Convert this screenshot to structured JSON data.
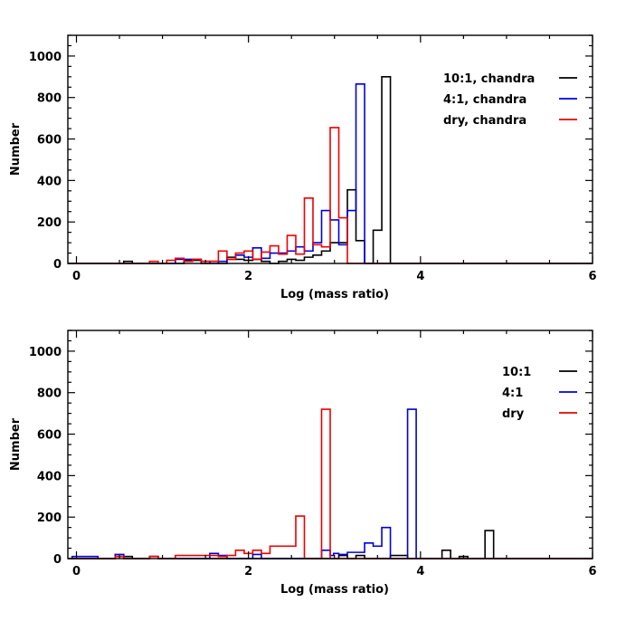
{
  "chart_data": [
    {
      "type": "histogram",
      "xlabel": "Log (mass ratio)",
      "ylabel": "Number",
      "xlim": [
        -0.1,
        6.0
      ],
      "ylim": [
        0,
        1100
      ],
      "xticks": [
        0,
        2,
        4,
        6
      ],
      "yticks": [
        0,
        200,
        400,
        600,
        800,
        1000
      ],
      "legend_position": "top-right",
      "series": [
        {
          "name": "10:1, chandra",
          "color": "#000000",
          "points": [
            [
              -0.1,
              0
            ],
            [
              0.55,
              0
            ],
            [
              0.55,
              10
            ],
            [
              0.65,
              10
            ],
            [
              0.65,
              0
            ],
            [
              1.25,
              0
            ],
            [
              1.25,
              15
            ],
            [
              1.45,
              15
            ],
            [
              1.45,
              0
            ],
            [
              1.55,
              0
            ],
            [
              1.55,
              10
            ],
            [
              1.65,
              10
            ],
            [
              1.65,
              0
            ],
            [
              1.75,
              0
            ],
            [
              1.75,
              30
            ],
            [
              1.85,
              30
            ],
            [
              1.85,
              20
            ],
            [
              1.95,
              20
            ],
            [
              1.95,
              15
            ],
            [
              2.05,
              15
            ],
            [
              2.05,
              20
            ],
            [
              2.15,
              20
            ],
            [
              2.15,
              10
            ],
            [
              2.25,
              10
            ],
            [
              2.25,
              0
            ],
            [
              2.35,
              0
            ],
            [
              2.35,
              10
            ],
            [
              2.45,
              10
            ],
            [
              2.45,
              20
            ],
            [
              2.55,
              20
            ],
            [
              2.55,
              15
            ],
            [
              2.65,
              15
            ],
            [
              2.65,
              30
            ],
            [
              2.75,
              30
            ],
            [
              2.75,
              40
            ],
            [
              2.85,
              40
            ],
            [
              2.85,
              60
            ],
            [
              2.95,
              60
            ],
            [
              2.95,
              100
            ],
            [
              3.05,
              100
            ],
            [
              3.05,
              100
            ],
            [
              3.15,
              100
            ],
            [
              3.15,
              355
            ],
            [
              3.25,
              355
            ],
            [
              3.25,
              110
            ],
            [
              3.35,
              110
            ],
            [
              3.35,
              0
            ],
            [
              3.45,
              0
            ],
            [
              3.45,
              160
            ],
            [
              3.55,
              160
            ],
            [
              3.55,
              900
            ],
            [
              3.65,
              900
            ],
            [
              3.65,
              0
            ],
            [
              6.0,
              0
            ]
          ]
        },
        {
          "name": "4:1, chandra",
          "color": "#0000dd",
          "points": [
            [
              -0.1,
              0
            ],
            [
              1.15,
              0
            ],
            [
              1.15,
              20
            ],
            [
              1.45,
              20
            ],
            [
              1.45,
              10
            ],
            [
              1.55,
              10
            ],
            [
              1.55,
              0
            ],
            [
              1.65,
              0
            ],
            [
              1.65,
              10
            ],
            [
              1.75,
              10
            ],
            [
              1.75,
              20
            ],
            [
              1.85,
              20
            ],
            [
              1.85,
              40
            ],
            [
              1.95,
              40
            ],
            [
              1.95,
              30
            ],
            [
              2.05,
              30
            ],
            [
              2.05,
              75
            ],
            [
              2.15,
              75
            ],
            [
              2.15,
              25
            ],
            [
              2.25,
              25
            ],
            [
              2.25,
              50
            ],
            [
              2.45,
              50
            ],
            [
              2.45,
              60
            ],
            [
              2.55,
              60
            ],
            [
              2.55,
              80
            ],
            [
              2.65,
              80
            ],
            [
              2.65,
              60
            ],
            [
              2.75,
              60
            ],
            [
              2.75,
              100
            ],
            [
              2.85,
              100
            ],
            [
              2.85,
              255
            ],
            [
              2.95,
              255
            ],
            [
              2.95,
              210
            ],
            [
              3.05,
              210
            ],
            [
              3.05,
              90
            ],
            [
              3.15,
              90
            ],
            [
              3.15,
              255
            ],
            [
              3.25,
              255
            ],
            [
              3.25,
              865
            ],
            [
              3.35,
              865
            ],
            [
              3.35,
              0
            ],
            [
              6.0,
              0
            ]
          ]
        },
        {
          "name": "dry, chandra",
          "color": "#ee0000",
          "points": [
            [
              -0.1,
              0
            ],
            [
              0.85,
              0
            ],
            [
              0.85,
              10
            ],
            [
              0.95,
              10
            ],
            [
              0.95,
              0
            ],
            [
              1.05,
              0
            ],
            [
              1.05,
              15
            ],
            [
              1.15,
              15
            ],
            [
              1.15,
              25
            ],
            [
              1.25,
              25
            ],
            [
              1.25,
              10
            ],
            [
              1.35,
              10
            ],
            [
              1.35,
              20
            ],
            [
              1.45,
              20
            ],
            [
              1.45,
              10
            ],
            [
              1.65,
              10
            ],
            [
              1.65,
              60
            ],
            [
              1.75,
              60
            ],
            [
              1.75,
              20
            ],
            [
              1.85,
              20
            ],
            [
              1.85,
              50
            ],
            [
              1.95,
              50
            ],
            [
              1.95,
              60
            ],
            [
              2.05,
              60
            ],
            [
              2.05,
              20
            ],
            [
              2.15,
              20
            ],
            [
              2.15,
              55
            ],
            [
              2.25,
              55
            ],
            [
              2.25,
              85
            ],
            [
              2.35,
              85
            ],
            [
              2.35,
              45
            ],
            [
              2.45,
              45
            ],
            [
              2.45,
              135
            ],
            [
              2.55,
              135
            ],
            [
              2.55,
              45
            ],
            [
              2.65,
              45
            ],
            [
              2.65,
              315
            ],
            [
              2.75,
              315
            ],
            [
              2.75,
              90
            ],
            [
              2.85,
              90
            ],
            [
              2.85,
              80
            ],
            [
              2.95,
              80
            ],
            [
              2.95,
              655
            ],
            [
              3.05,
              655
            ],
            [
              3.05,
              220
            ],
            [
              3.15,
              220
            ],
            [
              3.15,
              0
            ],
            [
              6.0,
              0
            ]
          ]
        }
      ]
    },
    {
      "type": "histogram",
      "xlabel": "Log (mass ratio)",
      "ylabel": "Number",
      "xlim": [
        -0.1,
        6.0
      ],
      "ylim": [
        0,
        1100
      ],
      "xticks": [
        0,
        2,
        4,
        6
      ],
      "yticks": [
        0,
        200,
        400,
        600,
        800,
        1000
      ],
      "legend_position": "top-right",
      "series": [
        {
          "name": "10:1",
          "color": "#000000",
          "points": [
            [
              -0.1,
              0
            ],
            [
              0.45,
              0
            ],
            [
              0.45,
              10
            ],
            [
              0.65,
              10
            ],
            [
              0.65,
              0
            ],
            [
              0.85,
              0
            ],
            [
              0.85,
              10
            ],
            [
              0.95,
              10
            ],
            [
              0.95,
              0
            ],
            [
              3.05,
              0
            ],
            [
              3.05,
              15
            ],
            [
              3.15,
              15
            ],
            [
              3.15,
              0
            ],
            [
              3.25,
              0
            ],
            [
              3.25,
              15
            ],
            [
              3.35,
              15
            ],
            [
              3.35,
              0
            ],
            [
              3.65,
              0
            ],
            [
              3.65,
              15
            ],
            [
              3.85,
              15
            ],
            [
              3.85,
              0
            ],
            [
              4.25,
              0
            ],
            [
              4.25,
              40
            ],
            [
              4.35,
              40
            ],
            [
              4.35,
              0
            ],
            [
              4.45,
              0
            ],
            [
              4.45,
              10
            ],
            [
              4.55,
              10
            ],
            [
              4.55,
              0
            ],
            [
              4.75,
              0
            ],
            [
              4.75,
              135
            ],
            [
              4.85,
              135
            ],
            [
              4.85,
              0
            ],
            [
              6.0,
              0
            ]
          ]
        },
        {
          "name": "4:1",
          "color": "#0000dd",
          "points": [
            [
              -0.1,
              0
            ],
            [
              -0.05,
              0
            ],
            [
              -0.05,
              10
            ],
            [
              0.25,
              10
            ],
            [
              0.25,
              0
            ],
            [
              0.45,
              0
            ],
            [
              0.45,
              20
            ],
            [
              0.55,
              20
            ],
            [
              0.55,
              0
            ],
            [
              0.85,
              0
            ],
            [
              0.85,
              10
            ],
            [
              0.95,
              10
            ],
            [
              0.95,
              0
            ],
            [
              1.55,
              0
            ],
            [
              1.55,
              25
            ],
            [
              1.65,
              25
            ],
            [
              1.65,
              15
            ],
            [
              1.75,
              15
            ],
            [
              1.75,
              0
            ],
            [
              2.05,
              0
            ],
            [
              2.05,
              20
            ],
            [
              2.15,
              20
            ],
            [
              2.15,
              0
            ],
            [
              2.85,
              0
            ],
            [
              2.85,
              40
            ],
            [
              2.95,
              40
            ],
            [
              2.95,
              15
            ],
            [
              2.99,
              15
            ],
            [
              2.99,
              25
            ],
            [
              3.05,
              25
            ],
            [
              3.05,
              20
            ],
            [
              3.15,
              20
            ],
            [
              3.15,
              30
            ],
            [
              3.35,
              30
            ],
            [
              3.35,
              75
            ],
            [
              3.45,
              75
            ],
            [
              3.45,
              60
            ],
            [
              3.55,
              60
            ],
            [
              3.55,
              150
            ],
            [
              3.65,
              150
            ],
            [
              3.65,
              0
            ],
            [
              3.85,
              0
            ],
            [
              3.85,
              720
            ],
            [
              3.95,
              720
            ],
            [
              3.95,
              0
            ],
            [
              6.0,
              0
            ]
          ]
        },
        {
          "name": "dry",
          "color": "#ee0000",
          "points": [
            [
              -0.1,
              0
            ],
            [
              0.45,
              0
            ],
            [
              0.45,
              10
            ],
            [
              0.55,
              10
            ],
            [
              0.55,
              0
            ],
            [
              0.85,
              0
            ],
            [
              0.85,
              10
            ],
            [
              0.95,
              10
            ],
            [
              0.95,
              0
            ],
            [
              1.15,
              0
            ],
            [
              1.15,
              15
            ],
            [
              1.65,
              15
            ],
            [
              1.65,
              10
            ],
            [
              1.75,
              10
            ],
            [
              1.75,
              15
            ],
            [
              1.85,
              15
            ],
            [
              1.85,
              40
            ],
            [
              1.95,
              40
            ],
            [
              1.95,
              25
            ],
            [
              2.05,
              25
            ],
            [
              2.05,
              40
            ],
            [
              2.15,
              40
            ],
            [
              2.15,
              25
            ],
            [
              2.25,
              25
            ],
            [
              2.25,
              60
            ],
            [
              2.55,
              60
            ],
            [
              2.55,
              205
            ],
            [
              2.65,
              205
            ],
            [
              2.65,
              0
            ],
            [
              2.85,
              0
            ],
            [
              2.85,
              720
            ],
            [
              2.95,
              720
            ],
            [
              2.95,
              0
            ],
            [
              6.0,
              0
            ]
          ]
        }
      ]
    }
  ]
}
